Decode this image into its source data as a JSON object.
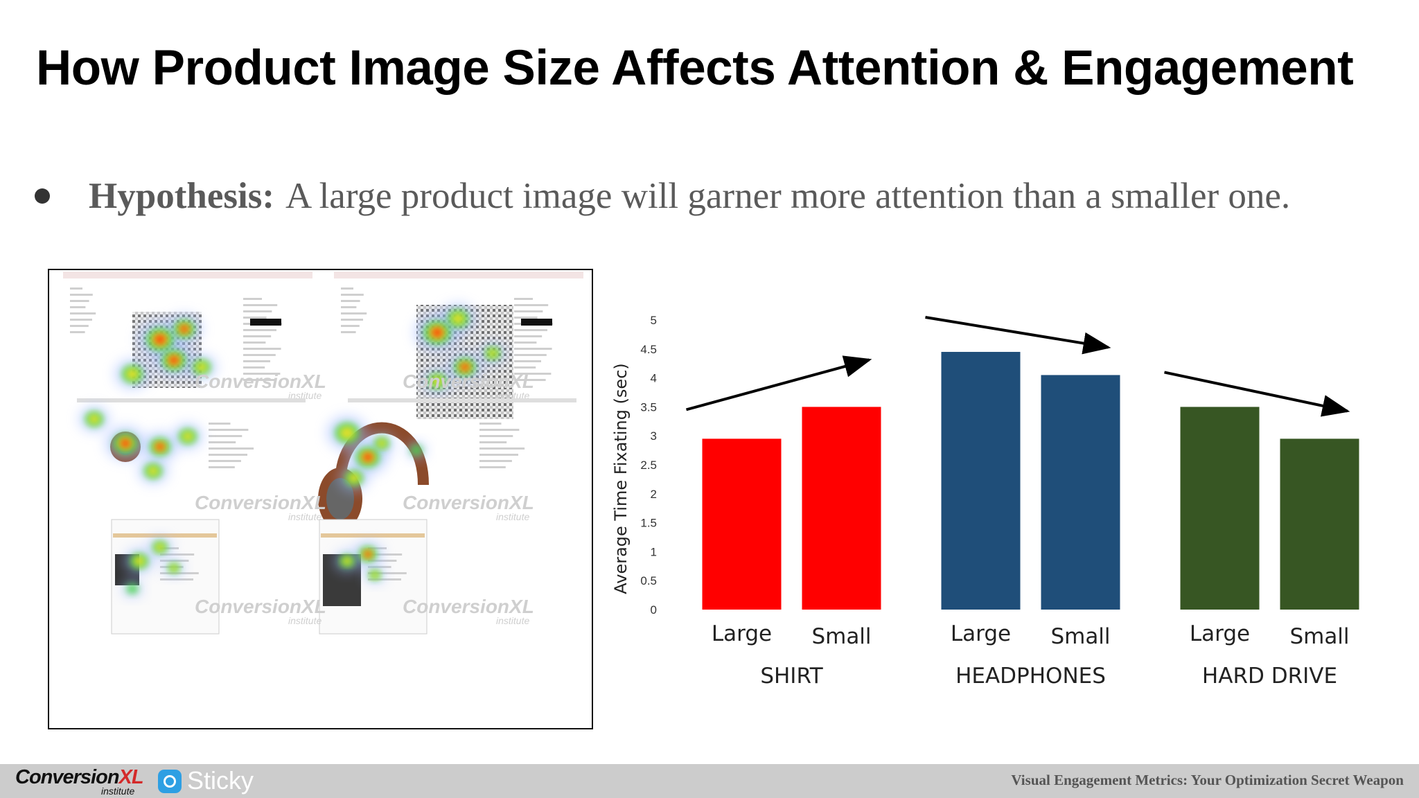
{
  "slide": {
    "title": "How Product Image Size Affects Attention & Engagement",
    "hypothesis_label": "Hypothesis:",
    "hypothesis_text": "A large product image will garner more attention than a smaller one."
  },
  "heatmap": {
    "watermark": "ConversionXL",
    "watermark_sub": "institute"
  },
  "chart_data": {
    "type": "bar",
    "ylabel": "Average Time Fixating (sec)",
    "xlabel": "",
    "ylim": [
      0,
      5
    ],
    "yticks": [
      "0",
      "0.5",
      "1",
      "1.5",
      "2",
      "2.5",
      "3",
      "3.5",
      "4",
      "4.5",
      "5"
    ],
    "grid": false,
    "legend": "none",
    "groups": [
      {
        "name": "SHIRT",
        "color": "#ff0000",
        "bars": [
          {
            "label": "Large",
            "value": 2.95
          },
          {
            "label": "Small",
            "value": 3.5
          }
        ],
        "trend": "up"
      },
      {
        "name": "HEADPHONES",
        "color": "#1f4e79",
        "bars": [
          {
            "label": "Large",
            "value": 4.45
          },
          {
            "label": "Small",
            "value": 4.05
          }
        ],
        "trend": "down"
      },
      {
        "name": "HARD DRIVE",
        "color": "#375623",
        "bars": [
          {
            "label": "Large",
            "value": 3.5
          },
          {
            "label": "Small",
            "value": 2.95
          }
        ],
        "trend": "down"
      }
    ]
  },
  "footer": {
    "brand_conversion": "Conversion",
    "brand_xl": "XL",
    "brand_institute": "institute",
    "brand_sticky": "Sticky",
    "presentation_title": "Visual Engagement Metrics: Your Optimization Secret Weapon",
    "colors": {
      "bar": "#cccccc",
      "sticky_icon": "#2e9fe3",
      "xl_accent": "#d42a2a"
    }
  }
}
